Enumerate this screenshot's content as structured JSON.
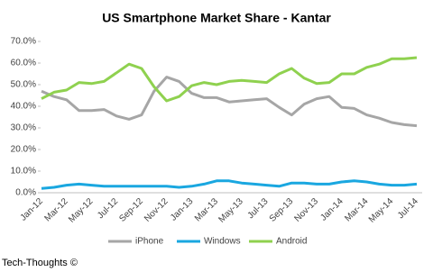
{
  "chart_data": {
    "type": "line",
    "title": "US Smartphone Market Share - Kantar",
    "categories": [
      "Jan-12",
      null,
      "Mar-12",
      null,
      "May-12",
      null,
      "Jul-12",
      null,
      "Sep-12",
      null,
      "Nov-12",
      null,
      "Jan-13",
      null,
      "Mar-13",
      null,
      "May-13",
      null,
      "Jul-13",
      null,
      "Sep-13",
      null,
      "Nov-13",
      null,
      "Jan-14",
      null,
      "Mar-14",
      null,
      "May-14",
      null,
      "Jul-14"
    ],
    "series": [
      {
        "name": "iPhone",
        "color": "#a6a6a6",
        "values": [
          47,
          44.5,
          43,
          38,
          38,
          38.5,
          35.5,
          34,
          36,
          47,
          53.5,
          51.5,
          46,
          44,
          44,
          42,
          42.5,
          43,
          43.5,
          39.5,
          36,
          41,
          43.5,
          44.5,
          39.5,
          39,
          36,
          34.5,
          32.5,
          31.5,
          31
        ]
      },
      {
        "name": "Windows",
        "color": "#1aa7e0",
        "values": [
          2,
          2.5,
          3.5,
          4,
          3.5,
          3,
          3,
          3,
          3,
          3,
          3,
          2.5,
          3,
          4,
          5.5,
          5.5,
          4.5,
          4,
          3.5,
          3,
          4.5,
          4.5,
          4,
          4,
          5,
          5.5,
          5,
          4,
          3.5,
          3.5,
          4
        ]
      },
      {
        "name": "Android",
        "color": "#8fd14f",
        "values": [
          43.5,
          46.5,
          47.5,
          51,
          50.5,
          51.5,
          55.5,
          59.5,
          57.5,
          49,
          42.5,
          44.5,
          49.5,
          51,
          50,
          51.5,
          52,
          51.5,
          51,
          55,
          57.5,
          53,
          50.5,
          51,
          55,
          55,
          58,
          59.5,
          62,
          62,
          62.5
        ]
      }
    ],
    "ylim": [
      0,
      70
    ],
    "yticks": [
      {
        "value": 0,
        "label": "0.0%"
      },
      {
        "value": 10,
        "label": "10.0%"
      },
      {
        "value": 20,
        "label": "20.0%"
      },
      {
        "value": 30,
        "label": "30.0%"
      },
      {
        "value": 40,
        "label": "40.0%"
      },
      {
        "value": 50,
        "label": "50.0%"
      },
      {
        "value": 60,
        "label": "60.0%"
      },
      {
        "value": 70,
        "label": "70.0%"
      }
    ],
    "grid": false,
    "legend": "bottom",
    "source": "Tech-Thoughts ©"
  }
}
